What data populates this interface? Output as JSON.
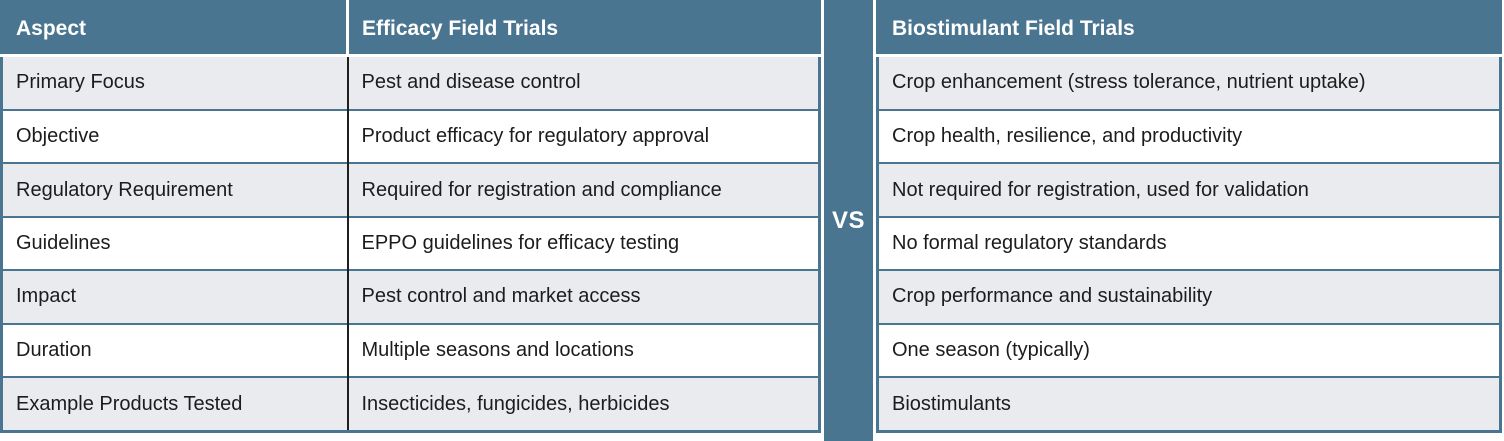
{
  "comparison": {
    "aspect_header": "Aspect",
    "left_header": "Efficacy Field Trials",
    "right_header": "Biostimulant Field Trials",
    "vs_label": "VS",
    "rows": [
      {
        "aspect": "Primary Focus",
        "left": "Pest and disease control",
        "right": "Crop enhancement (stress tolerance, nutrient uptake)"
      },
      {
        "aspect": "Objective",
        "left": "Product efficacy for regulatory approval",
        "right": "Crop health, resilience, and productivity"
      },
      {
        "aspect": "Regulatory Requirement",
        "left": "Required for registration and compliance",
        "right": "Not required for registration, used for validation"
      },
      {
        "aspect": "Guidelines",
        "left": "EPPO guidelines for efficacy testing",
        "right": "No formal regulatory standards"
      },
      {
        "aspect": "Impact",
        "left": "Pest control and market access",
        "right": "Crop performance and sustainability"
      },
      {
        "aspect": "Duration",
        "left": "Multiple seasons and locations",
        "right": "One season (typically)"
      },
      {
        "aspect": "Example Products Tested",
        "left": "Insecticides, fungicides, herbicides",
        "right": "Biostimulants"
      }
    ],
    "colors": {
      "teal": "#4a7590",
      "row_alt": "#e9ebee",
      "row_base": "#ffffff",
      "body_text": "#1c1c1c",
      "header_text": "#ffffff",
      "column_divider": "#1f1f1f"
    }
  }
}
